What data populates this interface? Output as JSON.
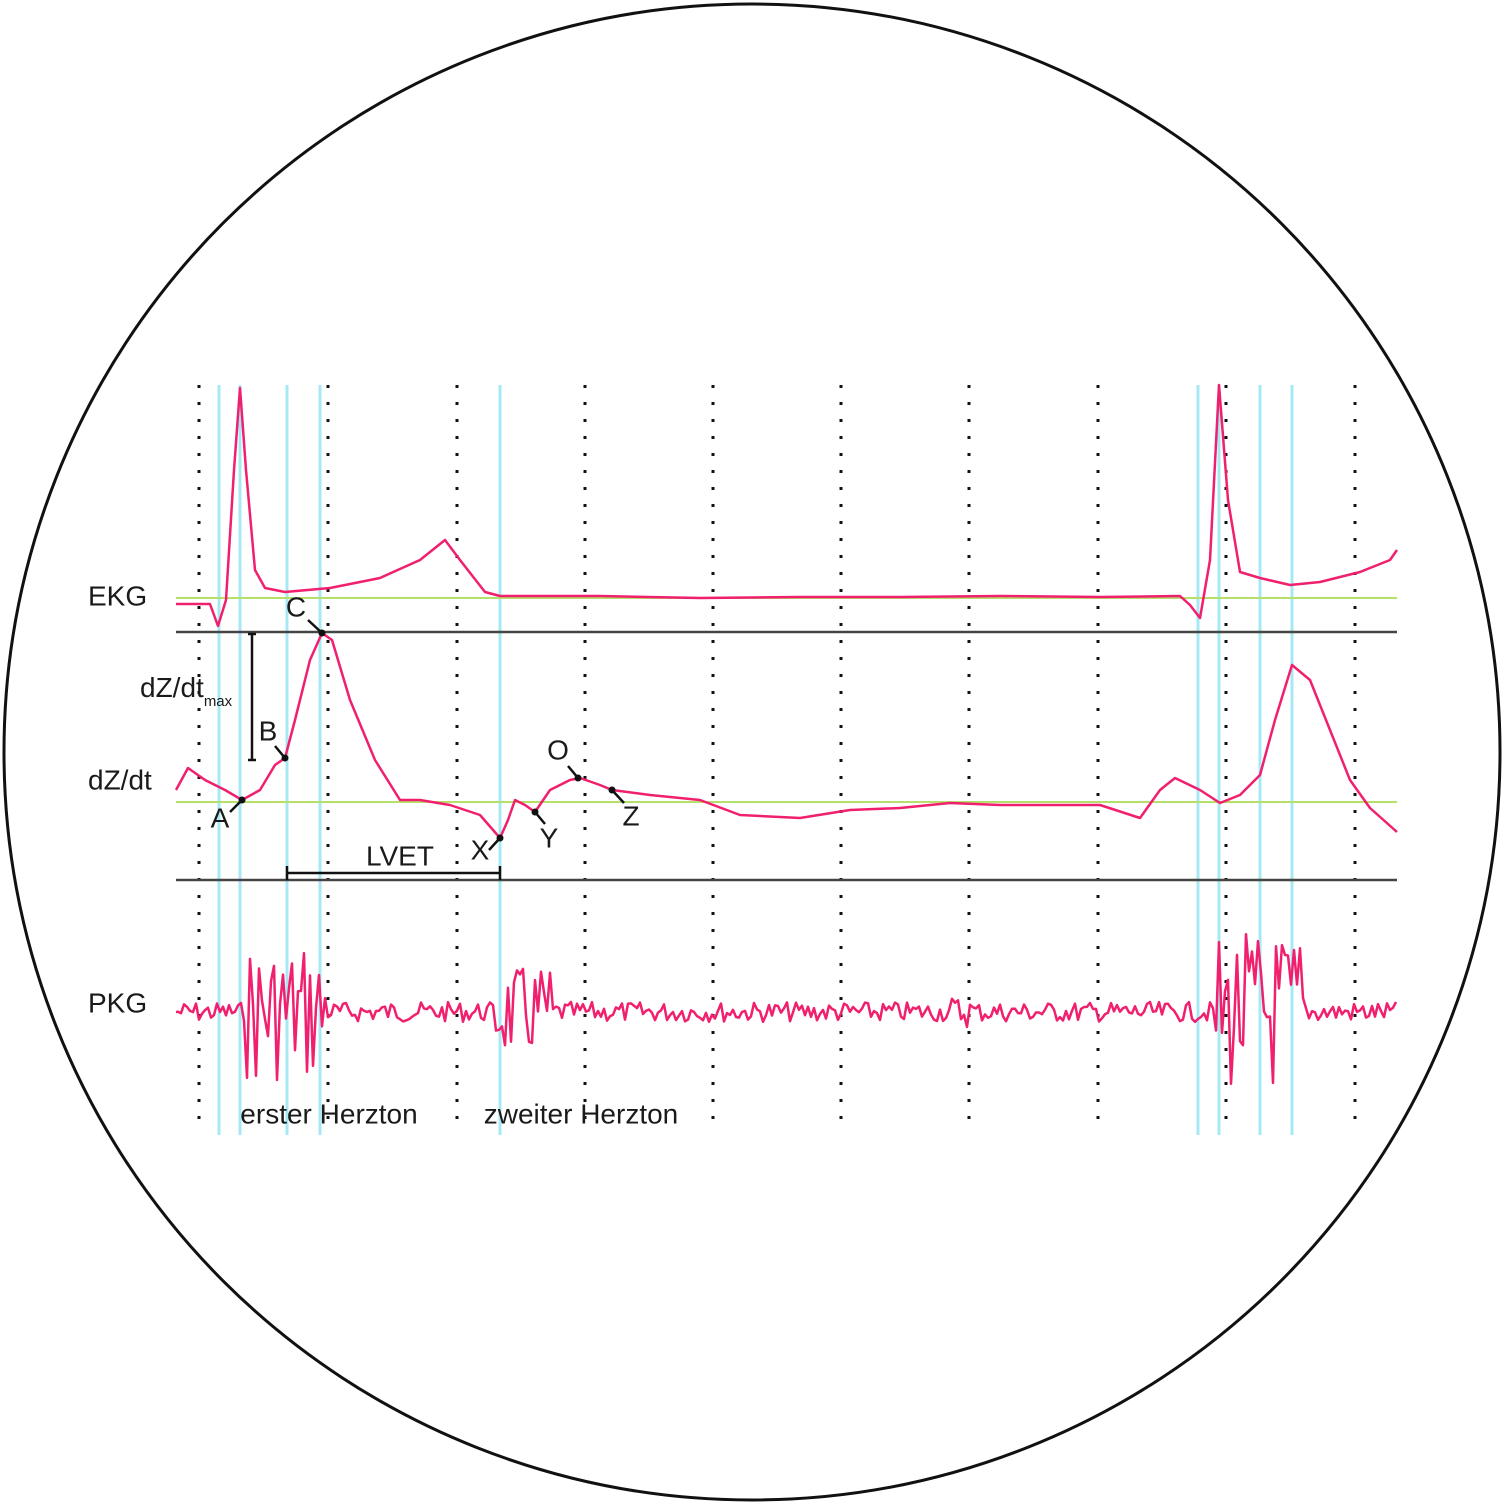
{
  "traces": [
    {
      "label": "EKG"
    },
    {
      "label": "dZ/dt"
    },
    {
      "label": "PKG"
    }
  ],
  "points": [
    {
      "label": "A"
    },
    {
      "label": "B"
    },
    {
      "label": "C"
    },
    {
      "label": "X"
    },
    {
      "label": "Y"
    },
    {
      "label": "O"
    },
    {
      "label": "Z"
    }
  ],
  "dzdt_max": {
    "label": "dZ/dt",
    "subscript": "max"
  },
  "interval": {
    "label": "LVET"
  },
  "heart_sounds": [
    {
      "label": "erster Herzton"
    },
    {
      "label": "zweiter Herzton"
    }
  ]
}
